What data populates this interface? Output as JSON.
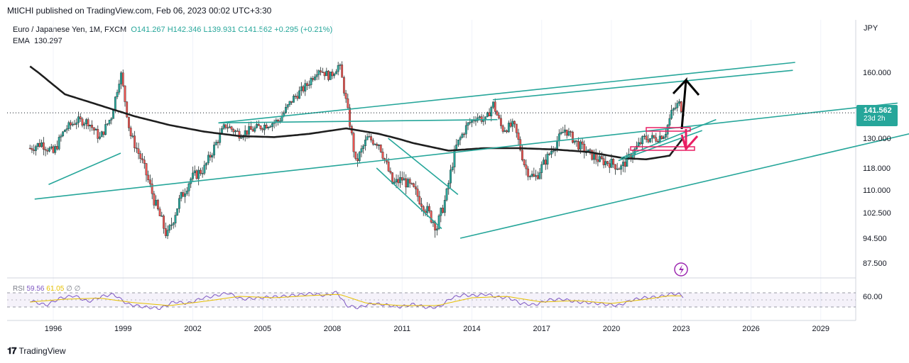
{
  "header": {
    "published": "MtICHI published on TradingView.com, Feb 06, 2023 00:02 UTC+3:30"
  },
  "legend": {
    "symbol": "Euro / Japanese Yen, 1M, FXCM",
    "ohlc": "O141.267  H142.346  L139.931  C141.562  +0.295 (+0.21%)",
    "ema_label": "EMA",
    "ema_value": "130.297"
  },
  "rsi_legend": {
    "label": "RSI",
    "value": "59.56",
    "ma_value": "61.05",
    "extra": "∅  ∅"
  },
  "currency": "JPY",
  "last_price": {
    "price": "141.562",
    "countdown": "23d 2h"
  },
  "footer": {
    "brand": "TradingView"
  },
  "colors": {
    "up": "#26a69a",
    "down": "#ef5350",
    "trendline": "#26a69a",
    "ema": "#1e1e1e",
    "rsi": "#7e57c2",
    "rsi_ma": "#e6c000",
    "rsi_band": "#7e57c2",
    "pink": "#e91e63"
  },
  "chart_data": {
    "type": "candlestick",
    "timeframe": "1M",
    "x_ticks": [
      "1996",
      "1999",
      "2002",
      "2005",
      "2008",
      "2011",
      "2014",
      "2017",
      "2020",
      "2023",
      "2026",
      "2029"
    ],
    "y_ticks": [
      "160.000",
      "141.562",
      "130.000",
      "118.000",
      "110.000",
      "102.500",
      "94.500",
      "87.500"
    ],
    "rsi_ticks": [
      "60.00"
    ],
    "price_path": [
      [
        1995.0,
        126.0
      ],
      [
        1995.5,
        128.0
      ],
      [
        1996.0,
        124.0
      ],
      [
        1996.5,
        134.0
      ],
      [
        1997.0,
        138.0
      ],
      [
        1997.5,
        137.5
      ],
      [
        1998.0,
        130.0
      ],
      [
        1998.5,
        140.0
      ],
      [
        1998.9,
        160.0
      ],
      [
        1999.3,
        132.0
      ],
      [
        1999.8,
        121.0
      ],
      [
        2000.4,
        105.0
      ],
      [
        2000.9,
        95.0
      ],
      [
        2001.4,
        106.0
      ],
      [
        2001.9,
        114.0
      ],
      [
        2002.5,
        118.0
      ],
      [
        2003.0,
        128.0
      ],
      [
        2003.4,
        136.0
      ],
      [
        2004.0,
        132.0
      ],
      [
        2004.6,
        134.0
      ],
      [
        2005.1,
        136.0
      ],
      [
        2005.7,
        138.0
      ],
      [
        2006.3,
        148.0
      ],
      [
        2006.9,
        154.0
      ],
      [
        2007.4,
        162.0
      ],
      [
        2007.9,
        158.0
      ],
      [
        2008.3,
        164.0
      ],
      [
        2008.7,
        140.0
      ],
      [
        2009.0,
        120.0
      ],
      [
        2009.5,
        130.0
      ],
      [
        2010.0,
        128.0
      ],
      [
        2010.6,
        112.0
      ],
      [
        2011.0,
        114.0
      ],
      [
        2011.5,
        110.0
      ],
      [
        2012.0,
        104.0
      ],
      [
        2012.5,
        98.0
      ],
      [
        2012.9,
        108.0
      ],
      [
        2013.3,
        126.0
      ],
      [
        2013.8,
        136.0
      ],
      [
        2014.2,
        140.0
      ],
      [
        2014.6,
        138.0
      ],
      [
        2014.9,
        146.0
      ],
      [
        2015.3,
        134.0
      ],
      [
        2015.8,
        136.0
      ],
      [
        2016.3,
        118.0
      ],
      [
        2016.7,
        114.0
      ],
      [
        2017.1,
        120.0
      ],
      [
        2017.6,
        128.0
      ],
      [
        2018.0,
        134.0
      ],
      [
        2018.5,
        128.0
      ],
      [
        2019.0,
        124.0
      ],
      [
        2019.5,
        121.0
      ],
      [
        2020.0,
        120.0
      ],
      [
        2020.4,
        118.0
      ],
      [
        2020.9,
        124.0
      ],
      [
        2021.4,
        130.0
      ],
      [
        2021.9,
        130.0
      ],
      [
        2022.3,
        132.0
      ],
      [
        2022.6,
        142.0
      ],
      [
        2022.9,
        146.0
      ],
      [
        2023.1,
        141.562
      ]
    ],
    "ema_path": [
      [
        1995.0,
        163.0
      ],
      [
        1996.5,
        150.0
      ],
      [
        1998.0,
        145.0
      ],
      [
        1999.5,
        140.0
      ],
      [
        2001.0,
        136.0
      ],
      [
        2002.5,
        133.0
      ],
      [
        2004.0,
        131.0
      ],
      [
        2005.5,
        130.5
      ],
      [
        2007.0,
        132.0
      ],
      [
        2008.6,
        134.5
      ],
      [
        2010.0,
        132.0
      ],
      [
        2011.5,
        128.0
      ],
      [
        2013.0,
        125.0
      ],
      [
        2014.5,
        126.0
      ],
      [
        2016.0,
        126.0
      ],
      [
        2017.5,
        125.5
      ],
      [
        2019.0,
        124.5
      ],
      [
        2020.5,
        122.0
      ],
      [
        2021.5,
        121.5
      ],
      [
        2022.5,
        123.0
      ],
      [
        2023.1,
        130.297
      ]
    ],
    "rsi_path": [
      [
        1995.0,
        48
      ],
      [
        1995.7,
        35
      ],
      [
        1996.3,
        55
      ],
      [
        1996.9,
        62
      ],
      [
        1997.5,
        45
      ],
      [
        1998.1,
        60
      ],
      [
        1998.6,
        66
      ],
      [
        1999.2,
        38
      ],
      [
        1999.9,
        30
      ],
      [
        2000.6,
        26
      ],
      [
        2001.2,
        45
      ],
      [
        2001.8,
        40
      ],
      [
        2002.4,
        55
      ],
      [
        2003.0,
        62
      ],
      [
        2003.5,
        70
      ],
      [
        2004.1,
        52
      ],
      [
        2004.7,
        55
      ],
      [
        2005.3,
        58
      ],
      [
        2005.9,
        60
      ],
      [
        2006.5,
        64
      ],
      [
        2007.1,
        68
      ],
      [
        2007.7,
        62
      ],
      [
        2008.2,
        72
      ],
      [
        2008.6,
        34
      ],
      [
        2009.1,
        28
      ],
      [
        2009.7,
        40
      ],
      [
        2010.3,
        36
      ],
      [
        2010.9,
        30
      ],
      [
        2011.5,
        38
      ],
      [
        2012.1,
        28
      ],
      [
        2012.6,
        30
      ],
      [
        2013.1,
        55
      ],
      [
        2013.6,
        64
      ],
      [
        2014.1,
        62
      ],
      [
        2014.6,
        66
      ],
      [
        2015.1,
        58
      ],
      [
        2015.6,
        56
      ],
      [
        2016.1,
        40
      ],
      [
        2016.7,
        36
      ],
      [
        2017.3,
        50
      ],
      [
        2017.9,
        52
      ],
      [
        2018.5,
        44
      ],
      [
        2019.1,
        42
      ],
      [
        2019.7,
        38
      ],
      [
        2020.3,
        34
      ],
      [
        2020.9,
        50
      ],
      [
        2021.4,
        56
      ],
      [
        2021.9,
        58
      ],
      [
        2022.3,
        62
      ],
      [
        2022.6,
        68
      ],
      [
        2022.9,
        66
      ],
      [
        2023.1,
        59.56
      ]
    ],
    "rsi_ma_path": [
      [
        1995.0,
        44
      ],
      [
        1996.5,
        52
      ],
      [
        1998.0,
        55
      ],
      [
        1999.5,
        42
      ],
      [
        2001.0,
        34
      ],
      [
        2002.5,
        46
      ],
      [
        2004.0,
        60
      ],
      [
        2005.5,
        56
      ],
      [
        2007.0,
        62
      ],
      [
        2008.3,
        66
      ],
      [
        2009.5,
        40
      ],
      [
        2011.0,
        34
      ],
      [
        2012.5,
        34
      ],
      [
        2014.0,
        56
      ],
      [
        2015.5,
        60
      ],
      [
        2017.0,
        44
      ],
      [
        2018.5,
        48
      ],
      [
        2020.0,
        40
      ],
      [
        2021.5,
        52
      ],
      [
        2022.5,
        62
      ],
      [
        2023.1,
        61.05
      ]
    ],
    "drawings": {
      "green_lines": [
        [
          1995.2,
          107.0,
          2032.3,
          146.0
        ],
        [
          1995.8,
          112.0,
          1998.9,
          124.0
        ],
        [
          2003.1,
          137.0,
          2015.1,
          138.5
        ],
        [
          2003.1,
          137.0,
          2027.9,
          165.0
        ],
        [
          2014.9,
          147.5,
          2027.8,
          161.0
        ],
        [
          2009.9,
          118.0,
          2012.7,
          97.5
        ],
        [
          2010.4,
          130.0,
          2013.4,
          108.5
        ],
        [
          2020.3,
          121.0,
          2023.9,
          133.5
        ],
        [
          2020.4,
          122.0,
          2024.5,
          138.5
        ],
        [
          2013.5,
          94.5,
          2032.8,
          132.0
        ]
      ]
    }
  }
}
